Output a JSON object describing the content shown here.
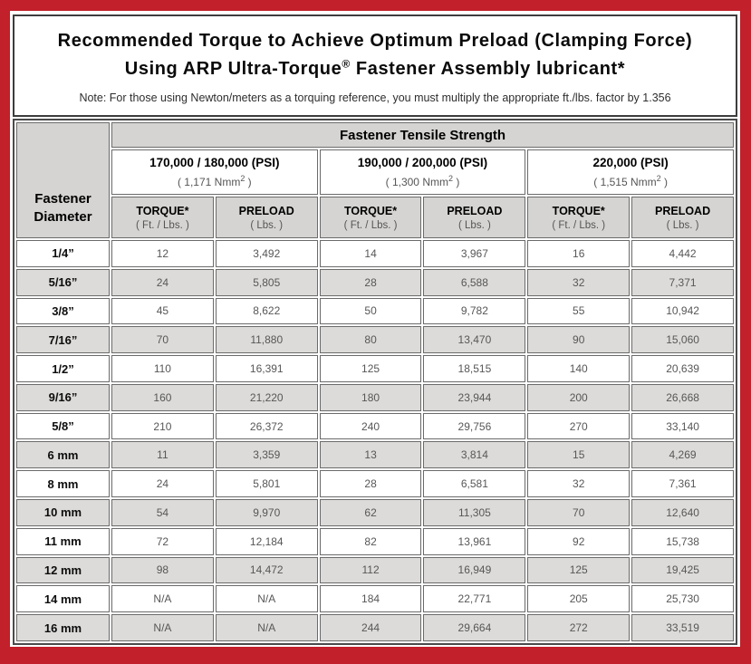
{
  "colors": {
    "frame_red": "#c2202a",
    "header_gray": "#d5d4d2",
    "alt_row_gray": "#dcdbd9"
  },
  "header": {
    "title_line1": "Recommended Torque to Achieve Optimum Preload (Clamping Force)",
    "title_line2_prefix": "Using ARP Ultra-Torque",
    "registered_mark": "®",
    "title_line2_suffix": " Fastener Assembly lubricant*",
    "note": "Note: For those using Newton/meters as a torquing reference, you must multiply the appropriate ft./lbs. factor by 1.356"
  },
  "table": {
    "corner_header": {
      "line1": "Fastener",
      "line2": "Diameter"
    },
    "tensile_strength_header": "Fastener Tensile Strength",
    "column_groups": [
      {
        "psi_label": "170,000 / 180,000 (PSI)",
        "nmm_prefix": "( 1,171 Nmm",
        "nmm_sup": "2",
        "nmm_close": " )"
      },
      {
        "psi_label": "190,000 / 200,000 (PSI)",
        "nmm_prefix": "( 1,300 Nmm",
        "nmm_sup": "2",
        "nmm_close": " )"
      },
      {
        "psi_label": "220,000 (PSI)",
        "nmm_prefix": "( 1,515 Nmm",
        "nmm_sup": "2",
        "nmm_close": " )"
      }
    ],
    "sub_headers": {
      "torque_label": "TORQUE*",
      "torque_unit": "( Ft. / Lbs. )",
      "preload_label": "PRELOAD",
      "preload_unit": "( Lbs. )"
    },
    "rows": [
      {
        "diameter": "1/4”",
        "values": [
          "12",
          "3,492",
          "14",
          "3,967",
          "16",
          "4,442"
        ]
      },
      {
        "diameter": "5/16”",
        "values": [
          "24",
          "5,805",
          "28",
          "6,588",
          "32",
          "7,371"
        ]
      },
      {
        "diameter": "3/8”",
        "values": [
          "45",
          "8,622",
          "50",
          "9,782",
          "55",
          "10,942"
        ]
      },
      {
        "diameter": "7/16”",
        "values": [
          "70",
          "11,880",
          "80",
          "13,470",
          "90",
          "15,060"
        ]
      },
      {
        "diameter": "1/2”",
        "values": [
          "110",
          "16,391",
          "125",
          "18,515",
          "140",
          "20,639"
        ]
      },
      {
        "diameter": "9/16”",
        "values": [
          "160",
          "21,220",
          "180",
          "23,944",
          "200",
          "26,668"
        ]
      },
      {
        "diameter": "5/8”",
        "values": [
          "210",
          "26,372",
          "240",
          "29,756",
          "270",
          "33,140"
        ]
      },
      {
        "diameter": "6 mm",
        "values": [
          "11",
          "3,359",
          "13",
          "3,814",
          "15",
          "4,269"
        ]
      },
      {
        "diameter": "8 mm",
        "values": [
          "24",
          "5,801",
          "28",
          "6,581",
          "32",
          "7,361"
        ]
      },
      {
        "diameter": "10 mm",
        "values": [
          "54",
          "9,970",
          "62",
          "11,305",
          "70",
          "12,640"
        ]
      },
      {
        "diameter": "11 mm",
        "values": [
          "72",
          "12,184",
          "82",
          "13,961",
          "92",
          "15,738"
        ]
      },
      {
        "diameter": "12 mm",
        "values": [
          "98",
          "14,472",
          "112",
          "16,949",
          "125",
          "19,425"
        ]
      },
      {
        "diameter": "14 mm",
        "values": [
          "N/A",
          "N/A",
          "184",
          "22,771",
          "205",
          "25,730"
        ]
      },
      {
        "diameter": "16 mm",
        "values": [
          "N/A",
          "N/A",
          "244",
          "29,664",
          "272",
          "33,519"
        ]
      }
    ]
  }
}
